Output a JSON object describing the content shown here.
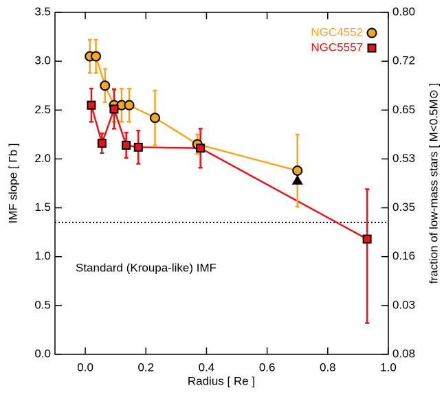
{
  "chart_data": {
    "type": "errorbar-line",
    "xlabel": "Radius [ Re ]",
    "ylabel": "IMF slope [ Γb ]",
    "y2label": "fraction of low-mass stars [ M<0.5M⊙ ]",
    "xlim": [
      -0.1,
      1.0
    ],
    "ylim": [
      0,
      3.5
    ],
    "xticks": [
      {
        "value": 0,
        "label": "0.0"
      },
      0.2,
      0.4,
      0.6,
      0.8,
      {
        "value": 1,
        "label": "1.0"
      }
    ],
    "yticks": [
      {
        "value": 0,
        "label": "0.0"
      },
      0.5,
      {
        "value": 1,
        "label": "1.0"
      },
      1.5,
      {
        "value": 2,
        "label": "2.0"
      },
      2.5,
      {
        "value": 3,
        "label": "3.0"
      },
      3.5
    ],
    "y2ticks": [
      0.08,
      0.03,
      0.16,
      0.35,
      0.53,
      0.65,
      0.72,
      {
        "value": 0.8,
        "label": "0.80"
      }
    ],
    "hline": 1.35,
    "annotation": "Standard (Kroupa-like) IMF",
    "legend": "upper right",
    "series": [
      {
        "name": "NGC4552",
        "color": "#f5a623",
        "marker": "circle",
        "x": [
          0.015,
          0.035,
          0.065,
          0.095,
          0.12,
          0.145,
          0.23,
          0.37,
          0.7
        ],
        "y": [
          3.05,
          3.05,
          2.75,
          2.55,
          2.55,
          2.55,
          2.42,
          2.15,
          1.88
        ],
        "err_low": [
          0.17,
          0.17,
          0.17,
          0.17,
          0.17,
          0.17,
          0.28,
          0.1,
          0.37
        ],
        "err_high": [
          0.17,
          0.17,
          0.17,
          0.17,
          0.17,
          0.17,
          0.28,
          0.1,
          0.37
        ]
      },
      {
        "name": "NGC5557",
        "color": "#e8141a",
        "marker": "square",
        "x": [
          0.02,
          0.055,
          0.095,
          0.135,
          0.175,
          0.38,
          0.93
        ],
        "y": [
          2.55,
          2.16,
          2.51,
          2.14,
          2.12,
          2.11,
          1.18
        ],
        "err_low": [
          0.17,
          0.1,
          0.2,
          0.13,
          0.17,
          0.2,
          0.86
        ],
        "err_high": [
          0.17,
          0.1,
          0.2,
          0.13,
          0.17,
          0.2,
          0.51
        ]
      }
    ],
    "extra_point": {
      "x": 0.7,
      "y": 1.78
    }
  }
}
